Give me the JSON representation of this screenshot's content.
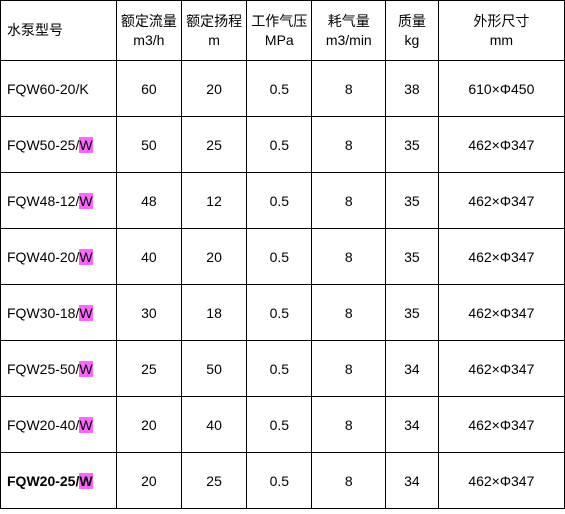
{
  "columns": [
    {
      "label": "水泵型号",
      "sub": ""
    },
    {
      "label": "额定流量",
      "sub": "m3/h"
    },
    {
      "label": "额定扬程",
      "sub": "m"
    },
    {
      "label": "工作气压",
      "sub": "MPa"
    },
    {
      "label": "耗气量",
      "sub": "m3/min"
    },
    {
      "label": "质量",
      "sub": "kg"
    },
    {
      "label": "外形尺寸",
      "sub": "mm"
    }
  ],
  "rows": [
    {
      "model_prefix": "FQW60-20/",
      "model_suffix": "K",
      "suffix_hl": false,
      "bold": false,
      "flow": "60",
      "head": "20",
      "press": "0.5",
      "air": "8",
      "mass": "38",
      "dim": "610×Φ450"
    },
    {
      "model_prefix": "FQW50-25/",
      "model_suffix": "W",
      "suffix_hl": true,
      "bold": false,
      "flow": "50",
      "head": "25",
      "press": "0.5",
      "air": "8",
      "mass": "35",
      "dim": "462×Φ347"
    },
    {
      "model_prefix": "FQW48-12/",
      "model_suffix": "W",
      "suffix_hl": true,
      "bold": false,
      "flow": "48",
      "head": "12",
      "press": "0.5",
      "air": "8",
      "mass": "35",
      "dim": "462×Φ347"
    },
    {
      "model_prefix": "FQW40-20/",
      "model_suffix": "W",
      "suffix_hl": true,
      "bold": false,
      "flow": "40",
      "head": "20",
      "press": "0.5",
      "air": "8",
      "mass": "35",
      "dim": "462×Φ347"
    },
    {
      "model_prefix": "FQW30-18/",
      "model_suffix": "W",
      "suffix_hl": true,
      "bold": false,
      "flow": "30",
      "head": "18",
      "press": "0.5",
      "air": "8",
      "mass": "35",
      "dim": "462×Φ347"
    },
    {
      "model_prefix": "FQW25-50/",
      "model_suffix": "W",
      "suffix_hl": true,
      "bold": false,
      "flow": "25",
      "head": "50",
      "press": "0.5",
      "air": "8",
      "mass": "34",
      "dim": "462×Φ347"
    },
    {
      "model_prefix": "FQW20-40/",
      "model_suffix": "W",
      "suffix_hl": true,
      "bold": false,
      "flow": "20",
      "head": "40",
      "press": "0.5",
      "air": "8",
      "mass": "34",
      "dim": "462×Φ347"
    },
    {
      "model_prefix": "FQW20-25/",
      "model_suffix": "W",
      "suffix_hl": true,
      "bold": true,
      "flow": "20",
      "head": "25",
      "press": "0.5",
      "air": "8",
      "mass": "34",
      "dim": "462×Φ347"
    }
  ],
  "colors": {
    "highlight": "#ff66ff",
    "border": "#000000",
    "text": "#000000",
    "bg": "#ffffff"
  }
}
